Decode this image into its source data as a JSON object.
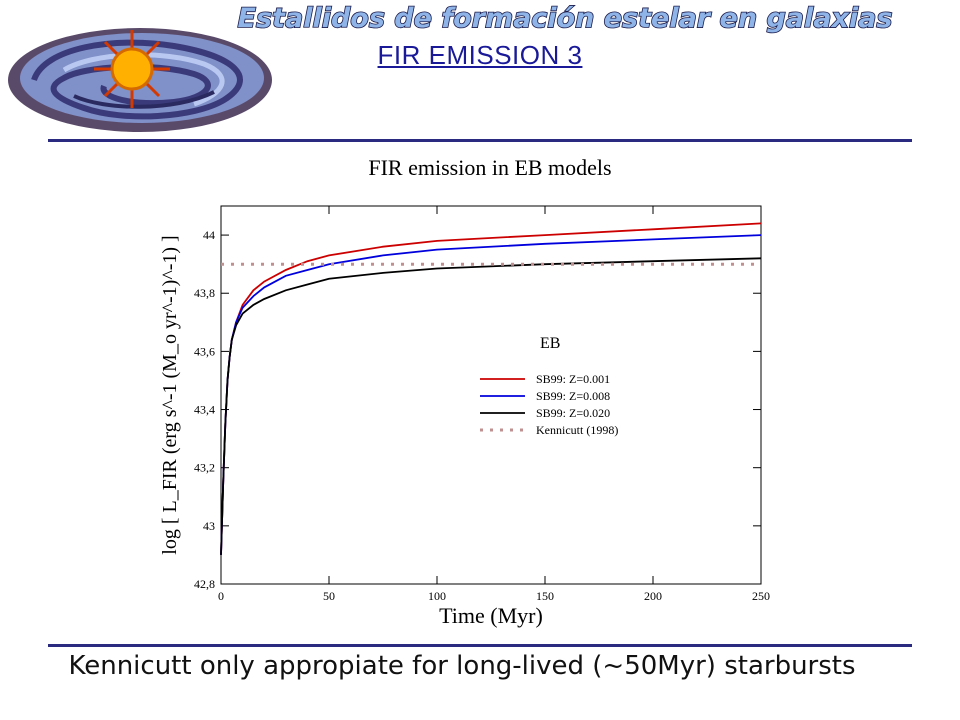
{
  "header": {
    "banner_text": "Estallidos de formación estelar en galaxias",
    "slide_title": "FIR EMISSION 3"
  },
  "footer": {
    "text": "Kennicutt only appropiate for long-lived (~50Myr) starbursts"
  },
  "colors": {
    "banner_fill": "#8fb4e8",
    "banner_stroke": "#1a1a4a",
    "title": "#1a1a99",
    "rule": "#2a2a80",
    "z001": "#cc0000",
    "z008": "#0000dd",
    "z020": "#000000",
    "kennicutt": "#c09090"
  },
  "chart_data": {
    "type": "line",
    "title": "FIR emission in EB models",
    "xlabel": "Time (Myr)",
    "ylabel": "log [ L_FIR (erg s^-1 (M_o yr^-1)^-1) ]",
    "xlim": [
      0,
      250
    ],
    "ylim": [
      42.8,
      44.1
    ],
    "xticks": [
      0,
      50,
      100,
      150,
      200,
      250
    ],
    "xtick_labels": [
      "0",
      "50",
      "100",
      "150",
      "200",
      "250"
    ],
    "yticks": [
      42.8,
      43.0,
      43.2,
      43.4,
      43.6,
      43.8,
      44.0
    ],
    "ytick_labels": [
      "42,8",
      "43",
      "43,2",
      "43,4",
      "43,6",
      "43,8",
      "44"
    ],
    "legend_title": "EB",
    "legend_position": "center-right",
    "series": [
      {
        "name": "SB99: Z=0.001",
        "color": "#cc0000",
        "style": "solid",
        "x": [
          0,
          1,
          2,
          3,
          4,
          5,
          7,
          10,
          15,
          20,
          30,
          40,
          50,
          75,
          100,
          150,
          200,
          250
        ],
        "y": [
          42.9,
          43.15,
          43.35,
          43.5,
          43.58,
          43.64,
          43.7,
          43.76,
          43.81,
          43.84,
          43.88,
          43.91,
          43.93,
          43.96,
          43.98,
          44.0,
          44.02,
          44.04
        ]
      },
      {
        "name": "SB99: Z=0.008",
        "color": "#0000dd",
        "style": "solid",
        "x": [
          0,
          1,
          2,
          3,
          4,
          5,
          7,
          10,
          15,
          20,
          30,
          40,
          50,
          75,
          100,
          150,
          200,
          250
        ],
        "y": [
          42.9,
          43.15,
          43.35,
          43.5,
          43.58,
          43.64,
          43.7,
          43.75,
          43.79,
          43.82,
          43.86,
          43.88,
          43.9,
          43.93,
          43.95,
          43.97,
          43.985,
          44.0
        ]
      },
      {
        "name": "SB99: Z=0.020",
        "color": "#000000",
        "style": "solid",
        "x": [
          0,
          1,
          2,
          3,
          4,
          5,
          7,
          10,
          15,
          20,
          30,
          40,
          50,
          75,
          100,
          150,
          200,
          250
        ],
        "y": [
          42.9,
          43.15,
          43.35,
          43.5,
          43.58,
          43.64,
          43.69,
          43.73,
          43.76,
          43.78,
          43.81,
          43.83,
          43.85,
          43.87,
          43.885,
          43.9,
          43.91,
          43.92
        ]
      },
      {
        "name": "Kennicutt (1998)",
        "color": "#c09090",
        "style": "dotted",
        "x": [
          0,
          250
        ],
        "y": [
          43.9,
          43.9
        ]
      }
    ]
  }
}
